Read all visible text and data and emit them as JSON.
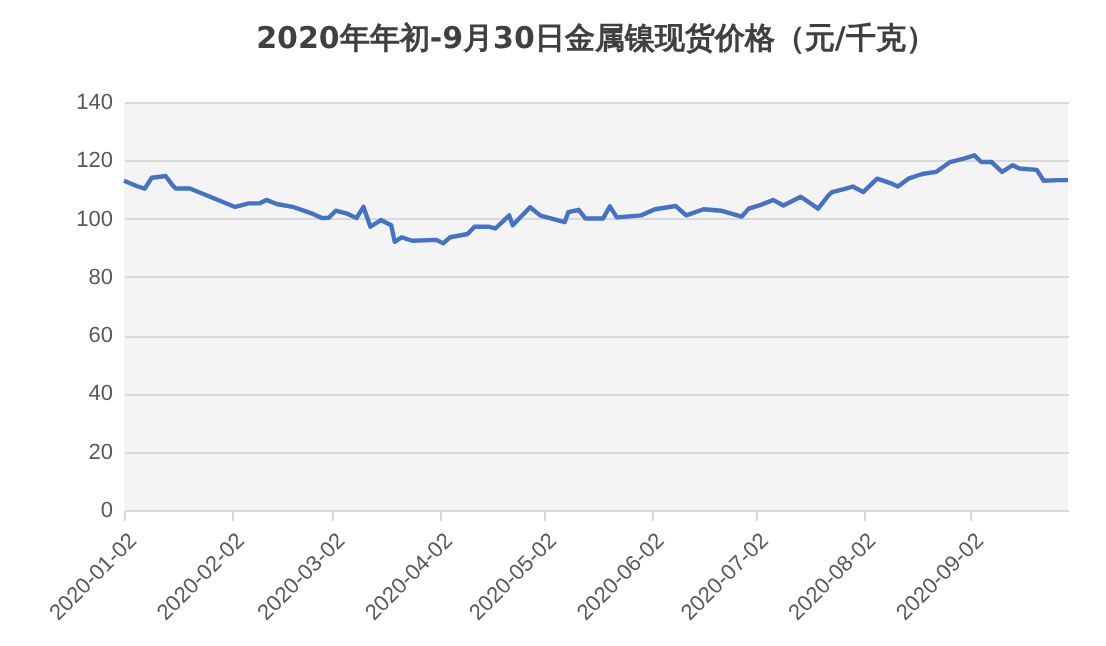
{
  "chart_data": {
    "type": "line",
    "title": "2020年年初-9月30日金属镍现货价格（元/千克）",
    "x": [
      "2020-01-02",
      "2020-01-06",
      "2020-01-08",
      "2020-01-10",
      "2020-01-14",
      "2020-01-16",
      "2020-01-17",
      "2020-01-21",
      "2020-02-03",
      "2020-02-07",
      "2020-02-10",
      "2020-02-12",
      "2020-02-15",
      "2020-02-20",
      "2020-02-25",
      "2020-02-28",
      "2020-03-01",
      "2020-03-03",
      "2020-03-06",
      "2020-03-09",
      "2020-03-11",
      "2020-03-13",
      "2020-03-16",
      "2020-03-19",
      "2020-03-20",
      "2020-03-22",
      "2020-03-25",
      "2020-04-01",
      "2020-04-03",
      "2020-04-05",
      "2020-04-10",
      "2020-04-12",
      "2020-04-16",
      "2020-04-18",
      "2020-04-22",
      "2020-04-23",
      "2020-04-28",
      "2020-05-01",
      "2020-05-08",
      "2020-05-09",
      "2020-05-12",
      "2020-05-14",
      "2020-05-19",
      "2020-05-21",
      "2020-05-23",
      "2020-05-30",
      "2020-06-03",
      "2020-06-09",
      "2020-06-12",
      "2020-06-17",
      "2020-06-22",
      "2020-06-28",
      "2020-06-30",
      "2020-07-03",
      "2020-07-07",
      "2020-07-10",
      "2020-07-15",
      "2020-07-20",
      "2020-07-23",
      "2020-07-24",
      "2020-07-28",
      "2020-07-30",
      "2020-08-02",
      "2020-08-06",
      "2020-08-10",
      "2020-08-12",
      "2020-08-15",
      "2020-08-19",
      "2020-08-23",
      "2020-08-27",
      "2020-08-31",
      "2020-09-03",
      "2020-09-05",
      "2020-09-08",
      "2020-09-11",
      "2020-09-14",
      "2020-09-16",
      "2020-09-21",
      "2020-09-23",
      "2020-09-27",
      "2020-09-30"
    ],
    "series": [
      {
        "color": "#4472c4",
        "values": [
          113,
          111,
          110.3,
          114,
          114.6,
          111.4,
          110.3,
          110.3,
          104,
          105.2,
          105.2,
          106.4,
          105,
          103.9,
          101.8,
          100.2,
          100.3,
          102.7,
          101.8,
          100.2,
          104,
          97.2,
          99.5,
          97.7,
          92,
          93.6,
          92.4,
          92.7,
          91.5,
          93.6,
          94.7,
          97.2,
          97.2,
          96.6,
          101.1,
          97.7,
          103.9,
          101,
          98.8,
          102.2,
          103,
          100,
          100,
          104.2,
          100.4,
          101.1,
          103.2,
          104.3,
          101.1,
          103.2,
          102.7,
          100.7,
          103.4,
          104.5,
          106.4,
          104.5,
          107.5,
          103.4,
          108,
          109.1,
          110.3,
          111,
          109.1,
          113.7,
          112.1,
          111,
          113.7,
          115.3,
          116,
          119.4,
          120.6,
          121.7,
          119.4,
          119.4,
          116,
          118.3,
          117.2,
          116.7,
          113,
          113.2,
          113.2
        ]
      }
    ],
    "xlim": [
      "2020-01-02",
      "2020-09-30"
    ],
    "xticks": [
      "2020-01-02",
      "2020-02-02",
      "2020-03-02",
      "2020-04-02",
      "2020-05-02",
      "2020-06-02",
      "2020-07-02",
      "2020-08-02",
      "2020-09-02"
    ],
    "ylim": [
      0,
      140
    ],
    "yticks": [
      0,
      20,
      40,
      60,
      80,
      100,
      120,
      140
    ],
    "grid": "y"
  }
}
